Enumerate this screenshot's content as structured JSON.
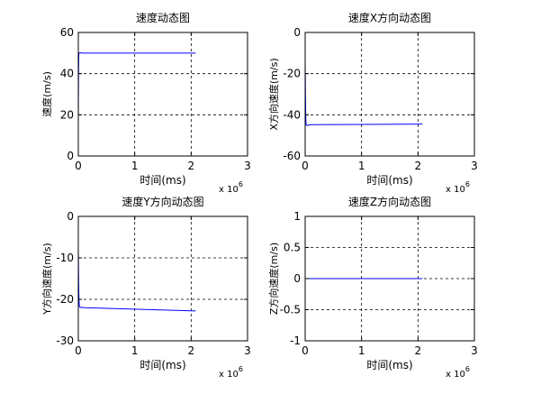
{
  "figure": {
    "background": "#ffffff",
    "axes_color": "#000000",
    "line_color": "#0000ff",
    "grid_color": "#000000"
  },
  "chart_data": [
    {
      "type": "line",
      "title": "速度动态图",
      "xlabel": "时间(ms)",
      "ylabel": "速度(m/s)",
      "xlim": [
        0,
        3
      ],
      "ylim": [
        0,
        60
      ],
      "xticks": [
        "0",
        "1",
        "2",
        "3"
      ],
      "yticks": [
        "0",
        "20",
        "40",
        "60"
      ],
      "x_multiplier": {
        "base": "x 10",
        "exponent": "6"
      },
      "grid": true,
      "series": [
        {
          "x": [
            0,
            0.002,
            0.004,
            0.006,
            0.008,
            0.01,
            0.015,
            0.02,
            0.04,
            0.06,
            2.08
          ],
          "y": [
            20,
            30,
            38,
            44,
            48,
            50,
            50,
            50,
            50.2,
            50,
            50
          ]
        }
      ]
    },
    {
      "type": "line",
      "title": "速度X方向动态图",
      "xlabel": "时间(ms)",
      "ylabel": "X方向速度(m/s)",
      "xlim": [
        0,
        3
      ],
      "ylim": [
        -60,
        0
      ],
      "xticks": [
        "0",
        "1",
        "2",
        "3"
      ],
      "yticks": [
        "-60",
        "-40",
        "-20",
        "0"
      ],
      "x_multiplier": {
        "base": "x 10",
        "exponent": "6"
      },
      "grid": true,
      "series": [
        {
          "x": [
            0,
            0.003,
            0.006,
            0.01,
            0.015,
            0.02,
            0.04,
            0.06,
            0.1,
            2.08
          ],
          "y": [
            -14,
            -22,
            -32,
            -40,
            -44,
            -45,
            -45.2,
            -45,
            -44.8,
            -44.5
          ]
        }
      ]
    },
    {
      "type": "line",
      "title": "速度Y方向动态图",
      "xlabel": "时间(ms)",
      "ylabel": "Y方向速度(m/s)",
      "xlim": [
        0,
        3
      ],
      "ylim": [
        -30,
        0
      ],
      "xticks": [
        "0",
        "1",
        "2",
        "3"
      ],
      "yticks": [
        "-30",
        "-20",
        "-10",
        "0"
      ],
      "x_multiplier": {
        "base": "x 10",
        "exponent": "6"
      },
      "grid": true,
      "series": [
        {
          "x": [
            0,
            0.003,
            0.006,
            0.01,
            0.015,
            0.02,
            0.04,
            0.06,
            0.1,
            2.08
          ],
          "y": [
            -8,
            -12,
            -16,
            -19,
            -21,
            -21.8,
            -22,
            -21.9,
            -22,
            -22.8
          ]
        }
      ]
    },
    {
      "type": "line",
      "title": "速度Z方向动态图",
      "xlabel": "时间(ms)",
      "ylabel": "Z方向速度(m/s)",
      "xlim": [
        0,
        3
      ],
      "ylim": [
        -1,
        1
      ],
      "xticks": [
        "0",
        "1",
        "2",
        "3"
      ],
      "yticks": [
        "-1",
        "-0.5",
        "0",
        "0.5",
        "1"
      ],
      "x_multiplier": {
        "base": "x 10",
        "exponent": "6"
      },
      "grid": true,
      "series": [
        {
          "x": [
            0,
            2.08
          ],
          "y": [
            0,
            0
          ]
        }
      ]
    }
  ]
}
